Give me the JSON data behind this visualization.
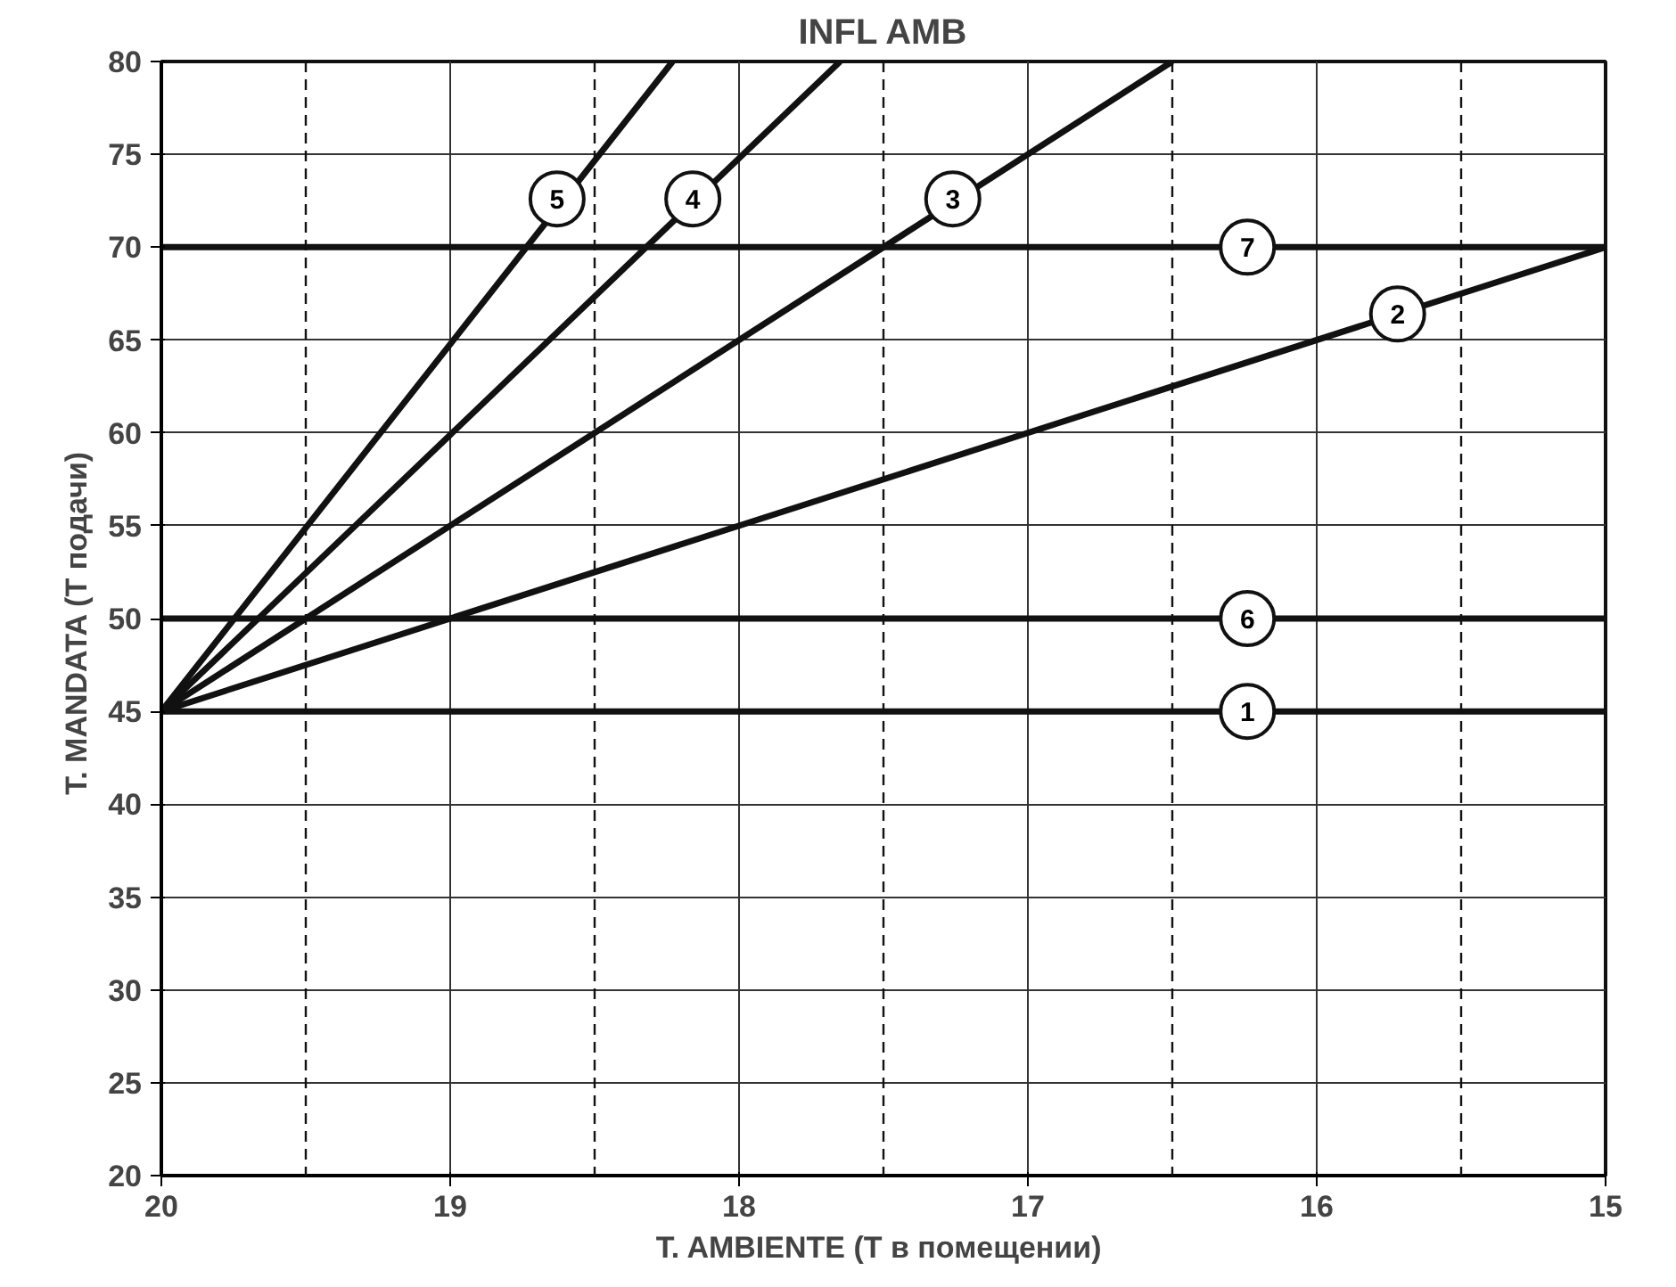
{
  "chart_data": {
    "type": "line",
    "title": "INFL AMB",
    "xlabel": "T. AMBIENTE  (Т в помещении)",
    "ylabel": "T. MANDATA  (Т подачи)",
    "xlim": [
      20,
      15
    ],
    "ylim": [
      20,
      80
    ],
    "xticks": [
      20,
      19,
      18,
      17,
      16,
      15
    ],
    "yticks": [
      20,
      25,
      30,
      35,
      40,
      45,
      50,
      55,
      60,
      65,
      70,
      75,
      80
    ],
    "grid": true,
    "marker": "none",
    "line_style": "solid",
    "series": [
      {
        "color": "#111111",
        "x": [
          20,
          15
        ],
        "values": [
          45,
          45
        ]
      },
      {
        "color": "#111111",
        "x": [
          20,
          15
        ],
        "values": [
          45,
          70
        ]
      },
      {
        "color": "#111111",
        "x": [
          20,
          16.5
        ],
        "values": [
          45,
          80
        ]
      },
      {
        "color": "#111111",
        "x": [
          20,
          17.65
        ],
        "values": [
          45,
          80
        ]
      },
      {
        "color": "#111111",
        "x": [
          20,
          18.23
        ],
        "values": [
          45,
          80
        ]
      },
      {
        "color": "#111111",
        "x": [
          20,
          15
        ],
        "values": [
          50,
          50
        ]
      },
      {
        "color": "#111111",
        "x": [
          20,
          15
        ],
        "values": [
          70,
          70
        ]
      }
    ],
    "ref_lines": [
      {
        "axis": "x",
        "value": 19.5,
        "line_style": "dashed",
        "color": "#111111"
      },
      {
        "axis": "x",
        "value": 18.5,
        "line_style": "dashed",
        "color": "#111111"
      },
      {
        "axis": "x",
        "value": 17.5,
        "line_style": "dashed",
        "color": "#111111"
      },
      {
        "axis": "x",
        "value": 16.5,
        "line_style": "dashed",
        "color": "#111111"
      },
      {
        "axis": "x",
        "value": 15.5,
        "line_style": "dashed",
        "color": "#111111"
      }
    ],
    "annotations": [
      {
        "text": "1",
        "x": 16.24,
        "y": 45
      },
      {
        "text": "2",
        "x": 15.72,
        "y": 66.4
      },
      {
        "text": "3",
        "x": 17.26,
        "y": 72.6
      },
      {
        "text": "4",
        "x": 18.16,
        "y": 72.6
      },
      {
        "text": "5",
        "x": 18.63,
        "y": 72.6
      },
      {
        "text": "6",
        "x": 16.24,
        "y": 50
      },
      {
        "text": "7",
        "x": 16.24,
        "y": 70
      }
    ]
  }
}
